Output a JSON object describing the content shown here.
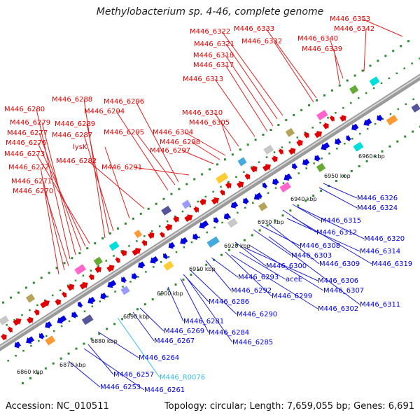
{
  "title": "Methylobacterium sp. 4-46, complete genome",
  "footer": {
    "accession": "Accession: NC_010511",
    "summary": "Topology: circular; Length: 7,659,055 bp; Genes: 6,691"
  },
  "colors": {
    "backbone": "#888888",
    "forward": "#e00000",
    "reverse": "#0000e0",
    "rna": "#33bbee",
    "tick_dot": "#2e8b2e"
  },
  "scale_labels": [
    "6860 kbp",
    "6870 kbp",
    "6880 kbp",
    "6890 kbp",
    "6900 kbp",
    "6910 kbp",
    "6920 kbp",
    "6930 kbp",
    "6940 kbp",
    "6950 kbp",
    "6960 kbp"
  ],
  "forward_labels": [
    "M446_6353",
    "M446_6342",
    "M446_6340",
    "M446_6339",
    "M446_6333",
    "M446_6332",
    "M446_6322",
    "M446_6321",
    "M446_6318",
    "M446_6317",
    "M446_6313",
    "M446_6310",
    "M446_6305",
    "M446_6304",
    "M446_6298",
    "M446_6297",
    "M446_6296",
    "M446_6294",
    "M446_6295",
    "M446_6291",
    "M446_6288",
    "M446_6289",
    "M446_6287",
    "lysK",
    "M446_6282",
    "M446_6280",
    "M446_6279",
    "M446_6277",
    "M446_6276",
    "M446_6273",
    "M446_6272",
    "M446_6271",
    "M446_6270"
  ],
  "reverse_labels": [
    "M446_6326",
    "M446_6324",
    "M446_6315",
    "M446_6312",
    "M446_6320",
    "M446_6308",
    "M446_6314",
    "M446_6303",
    "M446_6309",
    "M446_6319",
    "M446_6300",
    "M446_6293",
    "aceE",
    "M446_6306",
    "M446_6292",
    "M446_6307",
    "M446_6299",
    "M446_6311",
    "M446_6302",
    "M446_6286",
    "M446_6290",
    "M446_6281",
    "M446_6284",
    "M446_6269",
    "M446_6267",
    "M446_6285",
    "M446_6264",
    "M446_R0076",
    "M446_6257",
    "M446_6253",
    "M446_6261"
  ]
}
